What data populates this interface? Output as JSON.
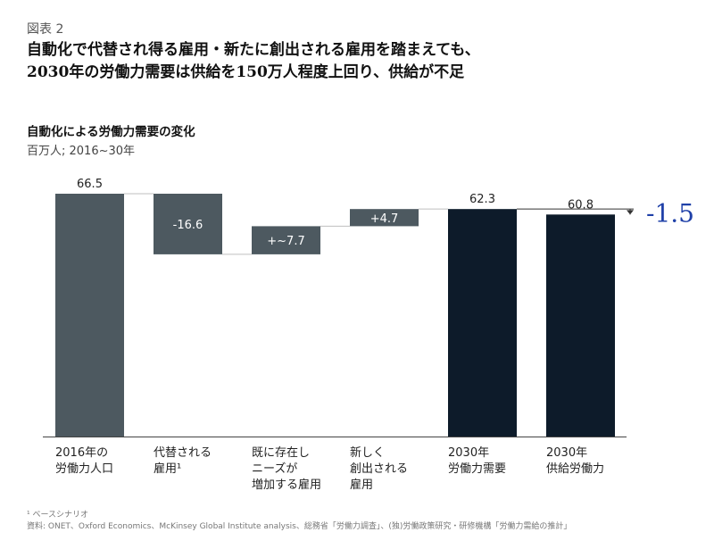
{
  "header": {
    "figure_label": "図表 2",
    "headline_line1": "自動化で代替され得る雇用・新たに創出される雇用を踏まえても、",
    "headline_line2": "2030年の労働力需要は供給を150万人程度上回り、供給が不足"
  },
  "chart_data": {
    "type": "bar",
    "title": "自動化による労働力需要の変化",
    "subtitle": "百万人; 2016~30年",
    "categories": [
      [
        "2016年の",
        "労働力人口"
      ],
      [
        "代替される",
        "雇用¹"
      ],
      [
        "既に存在し",
        "ニーズが",
        "増加する雇用"
      ],
      [
        "新しく",
        "創出される",
        "雇用"
      ],
      [
        "2030年",
        "労働力需要"
      ],
      [
        "2030年",
        "供給労働力"
      ]
    ],
    "bars": [
      {
        "kind": "total",
        "start": 0,
        "end": 66.5,
        "label": "66.5",
        "label_pos": "above"
      },
      {
        "kind": "change",
        "start": 66.5,
        "end": 49.9,
        "label": "-16.6",
        "label_pos": "inside"
      },
      {
        "kind": "change",
        "start": 49.9,
        "end": 57.6,
        "label": "+~7.7",
        "label_pos": "inside"
      },
      {
        "kind": "change",
        "start": 57.6,
        "end": 62.3,
        "label": "+4.7",
        "label_pos": "inside"
      },
      {
        "kind": "total",
        "start": 0,
        "end": 62.3,
        "label": "62.3",
        "label_pos": "above"
      },
      {
        "kind": "total",
        "start": 0,
        "end": 60.8,
        "label": "60.8",
        "label_pos": "above"
      }
    ],
    "gap_annotation": "-1.5",
    "ylim": [
      0,
      66.5
    ],
    "colors": {
      "slate": "#4d5960",
      "navy": "#0d1b2a",
      "accent": "#1f40a8",
      "connector": "#bfbfbf",
      "axis": "#444444"
    }
  },
  "footnotes": {
    "note1": "¹ ベースシナリオ",
    "source": "資料: ONET、Oxford Economics、McKinsey Global Institute analysis、総務省「労働力調査」、(独)労働政策研究・研修機構「労働力需給の推計」"
  }
}
